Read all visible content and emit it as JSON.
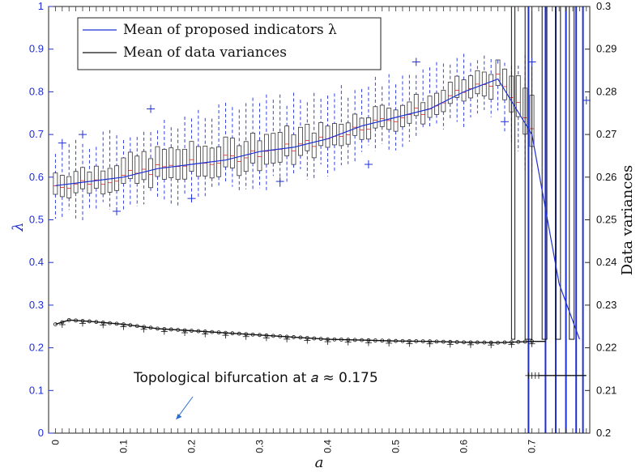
{
  "chart_data": {
    "type": "box+line (dual axis)",
    "xlabel": "a",
    "ylabel_left": "λ",
    "ylabel_right": "Data variances",
    "xlim": [
      -0.01,
      0.785
    ],
    "ylim_left": [
      0,
      1
    ],
    "ylim_right": [
      0.2,
      0.3
    ],
    "x_ticks": [
      "0",
      "0.1",
      "0.2",
      "0.3",
      "0.4",
      "0.5",
      "0.6",
      "0.7"
    ],
    "y_left_ticks": [
      "0",
      "0.1",
      "0.2",
      "0.3",
      "0.4",
      "0.5",
      "0.6",
      "0.7",
      "0.8",
      "0.9",
      "1"
    ],
    "y_right_ticks": [
      "0.2",
      "0.21",
      "0.22",
      "0.23",
      "0.24",
      "0.25",
      "0.26",
      "0.27",
      "0.28",
      "0.29",
      "0.3"
    ],
    "legend": [
      {
        "label": "Mean of proposed indicators λ",
        "color": "#1f2fd6"
      },
      {
        "label": "Mean of data variances",
        "color": "#111111"
      }
    ],
    "annotation": {
      "text": "Topological bifurcation at 𝑎 ≈ 0.175",
      "arrow_to_x": 0.175
    },
    "series": [
      {
        "name": "Mean of proposed indicators λ",
        "axis": "left",
        "color": "#1f2fd6",
        "x": [
          0,
          0.05,
          0.1,
          0.15,
          0.2,
          0.25,
          0.3,
          0.35,
          0.4,
          0.45,
          0.5,
          0.55,
          0.6,
          0.65,
          0.7,
          0.74,
          0.77
        ],
        "y": [
          0.58,
          0.59,
          0.6,
          0.62,
          0.63,
          0.64,
          0.66,
          0.67,
          0.69,
          0.72,
          0.74,
          0.76,
          0.8,
          0.83,
          0.7,
          0.35,
          0.22
        ]
      },
      {
        "name": "Mean of data variances",
        "axis": "right",
        "color": "#111111",
        "x": [
          0,
          0.02,
          0.05,
          0.1,
          0.15,
          0.2,
          0.25,
          0.3,
          0.35,
          0.4,
          0.45,
          0.5,
          0.55,
          0.6,
          0.65,
          0.7,
          0.72
        ],
        "y": [
          0.2255,
          0.2265,
          0.2262,
          0.2255,
          0.2245,
          0.224,
          0.2235,
          0.223,
          0.2225,
          0.222,
          0.2218,
          0.2216,
          0.2215,
          0.2213,
          0.2212,
          0.2215,
          0.2215
        ]
      }
    ],
    "boxes_lambda": {
      "x": [
        0,
        0.05,
        0.1,
        0.15,
        0.2,
        0.25,
        0.3,
        0.35,
        0.4,
        0.45,
        0.5,
        0.55,
        0.6,
        0.65,
        0.7
      ],
      "q1": [
        0.56,
        0.57,
        0.58,
        0.59,
        0.6,
        0.61,
        0.63,
        0.64,
        0.67,
        0.7,
        0.72,
        0.74,
        0.78,
        0.8,
        0.68
      ],
      "q3": [
        0.61,
        0.62,
        0.64,
        0.66,
        0.67,
        0.68,
        0.7,
        0.71,
        0.72,
        0.75,
        0.77,
        0.79,
        0.83,
        0.86,
        0.8
      ],
      "median": [
        0.58,
        0.59,
        0.6,
        0.62,
        0.63,
        0.64,
        0.66,
        0.67,
        0.69,
        0.72,
        0.74,
        0.76,
        0.8,
        0.83,
        0.72
      ],
      "lo": [
        0.5,
        0.52,
        0.53,
        0.55,
        0.55,
        0.57,
        0.58,
        0.6,
        0.62,
        0.66,
        0.68,
        0.7,
        0.73,
        0.75,
        0.6
      ],
      "hi": [
        0.67,
        0.68,
        0.7,
        0.72,
        0.74,
        0.76,
        0.77,
        0.79,
        0.8,
        0.81,
        0.83,
        0.85,
        0.87,
        0.88,
        0.88
      ]
    },
    "outliers_lambda": [
      {
        "x": 0.01,
        "y": 0.68
      },
      {
        "x": 0.04,
        "y": 0.7
      },
      {
        "x": 0.09,
        "y": 0.52
      },
      {
        "x": 0.14,
        "y": 0.76
      },
      {
        "x": 0.2,
        "y": 0.55
      },
      {
        "x": 0.33,
        "y": 0.59
      },
      {
        "x": 0.46,
        "y": 0.63
      },
      {
        "x": 0.53,
        "y": 0.87
      },
      {
        "x": 0.66,
        "y": 0.73
      },
      {
        "x": 0.7,
        "y": 0.87
      },
      {
        "x": 0.78,
        "y": 0.78
      }
    ]
  }
}
